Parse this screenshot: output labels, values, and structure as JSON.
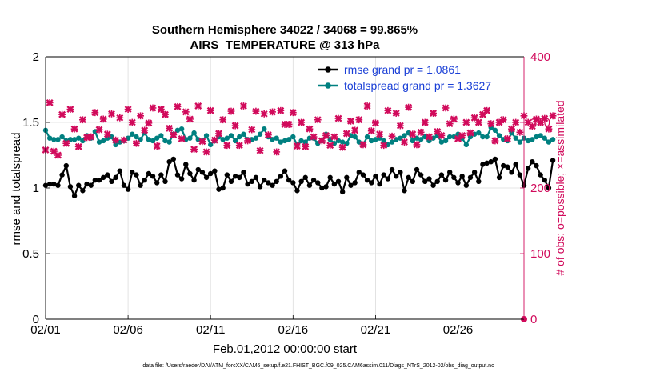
{
  "chart_data": {
    "type": "line",
    "title": "Southern Hemisphere 34022 / 34068 = 99.865%",
    "subtitle": "AIRS_TEMPERATURE @ 313 hPa",
    "xlabel": "Feb.01,2012 00:00:00 start",
    "ylabel_left": "rmse and totalspread",
    "ylabel_right": "# of obs: o=possible; ×=assimilated",
    "footer": "data file: /Users/raeder/DAI/ATM_forcXX/CAM6_setup/f.e21.FHIST_BGC.f09_025.CAM6assim.011/Diags_NTrS_2012-02/obs_diag_output.nc",
    "xlim": [
      0,
      29
    ],
    "ylim_left": [
      0,
      2
    ],
    "ylim_right": [
      0,
      400
    ],
    "grid": true,
    "x_ticks": [
      0,
      5,
      10,
      15,
      20,
      25
    ],
    "x_tick_labels": [
      "02/01",
      "02/06",
      "02/11",
      "02/16",
      "02/21",
      "02/26"
    ],
    "y_left_ticks": [
      0,
      0.5,
      1,
      1.5,
      2
    ],
    "y_left_tick_labels": [
      "0",
      "0.5",
      "1",
      "1.5",
      "2"
    ],
    "y_right_ticks": [
      0,
      100,
      200,
      300,
      400
    ],
    "y_right_tick_labels": [
      "0",
      "100",
      "200",
      "300",
      "400"
    ],
    "legend_position": "top-right",
    "series": [
      {
        "name": "rmse grand pr = 1.0861",
        "axis": "left",
        "color": "#000000",
        "marker": "dot",
        "x_start": 0,
        "x_step": 0.25,
        "values": [
          1.02,
          1.03,
          1.03,
          1.02,
          1.1,
          1.17,
          1.01,
          0.94,
          1.02,
          0.98,
          1.03,
          1.02,
          1.06,
          1.06,
          1.08,
          1.1,
          1.05,
          1.08,
          1.13,
          1.02,
          0.99,
          1.12,
          1.1,
          1.02,
          1.06,
          1.11,
          1.09,
          1.04,
          1.1,
          1.05,
          1.2,
          1.22,
          1.1,
          1.07,
          1.18,
          1.11,
          1.06,
          1.14,
          1.12,
          1.08,
          1.11,
          1.13,
          0.99,
          1.0,
          1.1,
          1.05,
          1.09,
          1.08,
          1.12,
          1.03,
          1.05,
          1.08,
          1.01,
          1.06,
          1.04,
          1.02,
          1.05,
          1.09,
          1.13,
          1.06,
          1.04,
          0.98,
          1.05,
          1.08,
          1.02,
          1.06,
          1.04,
          1.0,
          1.01,
          1.08,
          1.03,
          1.05,
          0.97,
          1.08,
          1.02,
          1.04,
          1.12,
          1.1,
          1.06,
          1.04,
          1.09,
          1.03,
          1.1,
          1.07,
          1.14,
          1.09,
          1.12,
          0.98,
          1.08,
          1.05,
          1.14,
          1.1,
          1.05,
          1.07,
          1.02,
          1.05,
          1.1,
          1.06,
          1.12,
          1.08,
          1.04,
          1.09,
          1.02,
          1.08,
          1.12,
          1.05,
          1.18,
          1.19,
          1.2,
          1.22,
          1.08,
          1.17,
          1.16,
          1.12,
          1.18,
          1.1,
          1.02,
          1.15,
          1.2,
          1.17,
          1.1,
          1.06,
          1.0,
          1.21
        ]
      },
      {
        "name": "totalspread grand pr = 1.3627",
        "axis": "left",
        "color": "#008080",
        "marker": "dot",
        "x_start": 0,
        "x_step": 0.25,
        "values": [
          1.44,
          1.38,
          1.37,
          1.37,
          1.39,
          1.36,
          1.37,
          1.37,
          1.38,
          1.36,
          1.4,
          1.38,
          1.43,
          1.35,
          1.36,
          1.38,
          1.39,
          1.33,
          1.35,
          1.36,
          1.38,
          1.41,
          1.39,
          1.37,
          1.42,
          1.37,
          1.36,
          1.38,
          1.4,
          1.36,
          1.35,
          1.41,
          1.44,
          1.45,
          1.37,
          1.38,
          1.42,
          1.37,
          1.36,
          1.4,
          1.33,
          1.36,
          1.39,
          1.37,
          1.38,
          1.4,
          1.36,
          1.39,
          1.41,
          1.37,
          1.37,
          1.38,
          1.41,
          1.45,
          1.39,
          1.37,
          1.38,
          1.35,
          1.36,
          1.37,
          1.39,
          1.33,
          1.36,
          1.35,
          1.38,
          1.38,
          1.34,
          1.36,
          1.41,
          1.37,
          1.34,
          1.36,
          1.35,
          1.34,
          1.4,
          1.39,
          1.35,
          1.33,
          1.39,
          1.36,
          1.37,
          1.38,
          1.36,
          1.33,
          1.35,
          1.37,
          1.38,
          1.4,
          1.42,
          1.36,
          1.38,
          1.37,
          1.39,
          1.36,
          1.38,
          1.4,
          1.35,
          1.36,
          1.39,
          1.39,
          1.41,
          1.38,
          1.33,
          1.39,
          1.41,
          1.42,
          1.39,
          1.39,
          1.46,
          1.44,
          1.4,
          1.37,
          1.36,
          1.42,
          1.38,
          1.35,
          1.38,
          1.36,
          1.37,
          1.39,
          1.4,
          1.38,
          1.35,
          1.37
        ]
      },
      {
        "name": "# of obs (possible / assimilated)",
        "axis": "right",
        "color": "#d10a5b",
        "marker": "cross",
        "x_start": 0,
        "x_step": 0.25,
        "values": [
          258,
          330,
          256,
          250,
          312,
          268,
          320,
          290,
          263,
          304,
          277,
          278,
          315,
          289,
          305,
          282,
          313,
          273,
          307,
          273,
          320,
          300,
          268,
          310,
          288,
          299,
          322,
          264,
          320,
          312,
          291,
          281,
          324,
          275,
          316,
          305,
          259,
          325,
          271,
          255,
          318,
          273,
          283,
          304,
          265,
          317,
          295,
          265,
          325,
          272,
          289,
          317,
          257,
          313,
          281,
          316,
          255,
          318,
          297,
          297,
          315,
          264,
          300,
          263,
          290,
          278,
          304,
          272,
          280,
          265,
          278,
          306,
          262,
          283,
          302,
          288,
          304,
          266,
          325,
          287,
          299,
          282,
          265,
          318,
          279,
          314,
          295,
          270,
          323,
          282,
          266,
          285,
          300,
          278,
          314,
          286,
          280,
          322,
          298,
          305,
          275,
          280,
          300,
          284,
          307,
          300,
          312,
          318,
          298,
          272,
          300,
          304,
          275,
          290,
          300,
          285,
          310,
          300,
          294,
          305,
          300,
          306,
          290,
          310
        ]
      }
    ]
  }
}
